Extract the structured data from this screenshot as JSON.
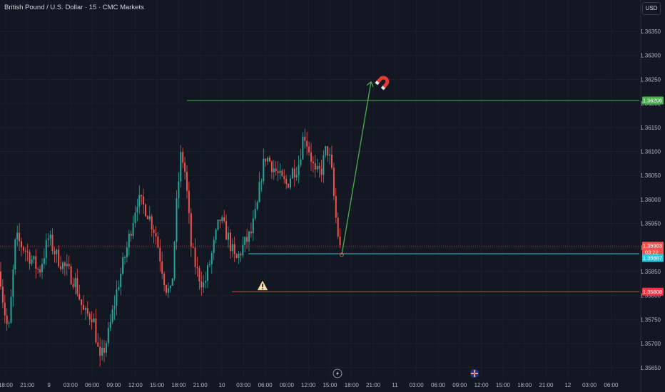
{
  "header": {
    "title": "British Pound / U.S. Dollar · 15 · CMC Markets",
    "currency_button": "USD"
  },
  "colors": {
    "background": "#131722",
    "up": "#26a69a",
    "down": "#ef5350",
    "target_line": "#4caf50",
    "support_line": "#26c6da",
    "stop_line": "#f23645",
    "axis_text": "#b2b5be"
  },
  "chart_data": {
    "type": "candlestick",
    "symbol": "GBPUSD",
    "timeframe": "15",
    "ylim": [
      1.3562,
      1.3646
    ],
    "y_ticks": [
      "1.36350",
      "1.36300",
      "1.36250",
      "1.36200",
      "1.36150",
      "1.36100",
      "1.36050",
      "1.36000",
      "1.35950",
      "1.35900",
      "1.35850",
      "1.35800",
      "1.35750",
      "1.35700",
      "1.35650"
    ],
    "x_ticks": [
      "18:00",
      "21:00",
      "9",
      "03:00",
      "06:00",
      "09:00",
      "12:00",
      "15:00",
      "18:00",
      "21:00",
      "10",
      "03:00",
      "06:00",
      "09:00",
      "12:00",
      "15:00",
      "18:00",
      "21:00",
      "11",
      "03:00",
      "06:00",
      "09:00",
      "12:00",
      "15:00",
      "18:00",
      "21:00",
      "12",
      "03:00",
      "06:00"
    ],
    "price_labels": [
      {
        "name": "target",
        "value": "1.36206"
      },
      {
        "name": "last",
        "value": "1.35903",
        "countdown": "03:22"
      },
      {
        "name": "support",
        "value": "1.35887"
      },
      {
        "name": "stop",
        "value": "1.35808"
      }
    ],
    "levels": [
      {
        "name": "target",
        "price": 1.36206
      },
      {
        "name": "support",
        "price": 1.35887
      },
      {
        "name": "stop",
        "price": 1.35808
      },
      {
        "name": "last",
        "price": 1.35903
      }
    ],
    "projection": {
      "from_price": 1.35885,
      "to_price": 1.36245
    },
    "annotations": [
      "magnet-icon",
      "warning-icon",
      "lightning-icon",
      "flag-icon"
    ]
  }
}
